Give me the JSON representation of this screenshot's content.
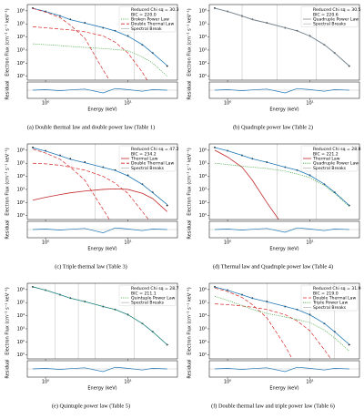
{
  "chart_data": [
    {
      "type": "line",
      "caption": "(a) Double thermal law and double power law (Table 1)",
      "xlabel": "Energy (keV)",
      "ylabel": "Electron Flux (cm⁻² s⁻¹ keV⁻¹)",
      "residual_label": "Residual",
      "stats": [
        "Reduced Chi sq = 30.3",
        "BIC = 220.0"
      ],
      "xscale": "log",
      "yscale": "log",
      "x": [
        0.7,
        1,
        1.5,
        2,
        3,
        5,
        7,
        10,
        15,
        20,
        30
      ],
      "xlim": [
        0.6,
        40
      ],
      "ylim": [
        5,
        3000000
      ],
      "xticks": [
        {
          "value": 1,
          "label": "10⁰"
        },
        {
          "value": 10,
          "label": "10¹"
        }
      ],
      "yticks": [
        {
          "value": 10,
          "label": "10¹"
        },
        {
          "value": 100,
          "label": "10²"
        },
        {
          "value": 1000,
          "label": "10³"
        },
        {
          "value": 10000,
          "label": "10⁴"
        },
        {
          "value": 100000,
          "label": "10⁵"
        },
        {
          "value": 1000000,
          "label": "10⁶"
        }
      ],
      "series": [
        {
          "color": "#000000",
          "style": "points",
          "values": [
            1600000,
            900000,
            400000,
            220000,
            120000,
            50000,
            30000,
            12000,
            2500,
            600,
            60
          ]
        },
        {
          "color": "#1f77b4",
          "style": "solid",
          "values": [
            1550000,
            880000,
            410000,
            210000,
            115000,
            52000,
            29000,
            11500,
            2600,
            580,
            65
          ]
        },
        {
          "name": "Broken Power Law",
          "color": "#2ca02c",
          "style": "dotted",
          "values": [
            3000,
            2600,
            2200,
            1900,
            1600,
            1300,
            1100,
            900,
            300,
            100,
            10
          ]
        },
        {
          "name": "Double Thermal Law",
          "color": "#d62728",
          "style": "dashed",
          "values": [
            1500000,
            800000,
            300000,
            80000,
            8000,
            30,
            1,
            1,
            1,
            1,
            1
          ]
        },
        {
          "color": "#d62728",
          "style": "dashed",
          "values": [
            60000,
            50000,
            40000,
            35000,
            25000,
            12000,
            4000,
            600,
            20,
            1,
            1
          ]
        }
      ],
      "breaks": {
        "name": "Spectral Break",
        "color": "#bbbbbb",
        "x": [
          4,
          12
        ]
      },
      "residual": {
        "color": "#1f77b4",
        "values": [
          0,
          0.1,
          -0.1,
          0.05,
          0.2,
          -0.5,
          0.3,
          0.1,
          -0.2,
          0.1,
          0
        ]
      },
      "residual_ylim": [
        -1.5,
        1.5
      ]
    },
    {
      "type": "line",
      "caption": "(b) Quadruple power law (Table 2)",
      "xlabel": "Energy (keV)",
      "ylabel": "Electron Flux (cm⁻² s⁻¹ keV⁻¹)",
      "residual_label": "Residual",
      "stats": [
        "Reduced Chi sq = 30.5",
        "BIC = 220.6"
      ],
      "xscale": "log",
      "yscale": "log",
      "x": [
        0.7,
        1,
        1.5,
        2,
        3,
        5,
        7,
        10,
        15,
        20,
        30
      ],
      "xlim": [
        0.6,
        40
      ],
      "ylim": [
        5,
        3000000
      ],
      "xticks": [
        {
          "value": 1,
          "label": "10⁰"
        },
        {
          "value": 10,
          "label": "10¹"
        }
      ],
      "yticks": [
        {
          "value": 10,
          "label": "10¹"
        },
        {
          "value": 100,
          "label": "10²"
        },
        {
          "value": 1000,
          "label": "10³"
        },
        {
          "value": 10000,
          "label": "10⁴"
        },
        {
          "value": 100000,
          "label": "10⁵"
        },
        {
          "value": 1000000,
          "label": "10⁶"
        }
      ],
      "series": [
        {
          "color": "#000000",
          "style": "points",
          "values": [
            1600000,
            900000,
            400000,
            220000,
            120000,
            50000,
            30000,
            12000,
            2500,
            600,
            60
          ]
        },
        {
          "color": "#1f77b4",
          "style": "solid",
          "values": [
            1580000,
            890000,
            405000,
            215000,
            118000,
            51000,
            29500,
            11800,
            2550,
            590,
            62
          ]
        },
        {
          "name": "Quadruple Power Law",
          "color": "#888888",
          "style": "solid",
          "values": [
            1580000,
            890000,
            405000,
            215000,
            118000,
            51000,
            29500,
            11800,
            2550,
            590,
            62
          ]
        }
      ],
      "breaks": {
        "name": "Spectral Breaks",
        "color": "#bbbbbb",
        "x": [
          1.5,
          4,
          12
        ]
      },
      "residual": {
        "color": "#1f77b4",
        "values": [
          0,
          0.1,
          -0.1,
          0.05,
          0.2,
          -0.5,
          0.3,
          0.1,
          -0.2,
          0.1,
          0
        ]
      },
      "residual_ylim": [
        -1.5,
        1.5
      ]
    },
    {
      "type": "line",
      "caption": "(c) Triple thermal law (Table 3)",
      "xlabel": "Energy (keV)",
      "ylabel": "Electron Flux (cm⁻² s⁻¹ keV⁻¹)",
      "residual_label": "Residual",
      "stats": [
        "Reduced Chi sq = 47.2",
        "BIC = 234.2"
      ],
      "xscale": "log",
      "yscale": "log",
      "x": [
        0.7,
        1,
        1.5,
        2,
        3,
        5,
        7,
        10,
        15,
        20,
        30
      ],
      "xlim": [
        0.6,
        40
      ],
      "ylim": [
        5,
        3000000
      ],
      "xticks": [
        {
          "value": 1,
          "label": "10⁰"
        },
        {
          "value": 10,
          "label": "10¹"
        }
      ],
      "yticks": [
        {
          "value": 10,
          "label": "10¹"
        },
        {
          "value": 100,
          "label": "10²"
        },
        {
          "value": 1000,
          "label": "10³"
        },
        {
          "value": 10000,
          "label": "10⁴"
        },
        {
          "value": 100000,
          "label": "10⁵"
        },
        {
          "value": 1000000,
          "label": "10⁶"
        }
      ],
      "series": [
        {
          "color": "#000000",
          "style": "points",
          "values": [
            1600000,
            900000,
            400000,
            220000,
            120000,
            50000,
            30000,
            12000,
            2500,
            600,
            60
          ]
        },
        {
          "color": "#1f77b4",
          "style": "solid",
          "values": [
            1500000,
            850000,
            380000,
            200000,
            110000,
            48000,
            28000,
            11000,
            2400,
            560,
            70
          ]
        },
        {
          "name": "Thermal Law",
          "color": "#c0282a",
          "style": "solid",
          "values": [
            150,
            250,
            400,
            550,
            750,
            1000,
            1100,
            1000,
            500,
            200,
            20
          ]
        },
        {
          "name": "Double Thermal Law",
          "color": "#d62728",
          "style": "dashed",
          "values": [
            1200000,
            600000,
            200000,
            50000,
            5000,
            30,
            1,
            1,
            1,
            1,
            1
          ]
        },
        {
          "color": "#d62728",
          "style": "dashed",
          "values": [
            100000,
            90000,
            70000,
            50000,
            30000,
            10000,
            3000,
            500,
            20,
            2,
            1
          ]
        }
      ],
      "breaks": {
        "name": "Spectral Breaks",
        "color": "#bbbbbb",
        "x": [
          4
        ]
      },
      "residual": {
        "color": "#1f77b4",
        "values": [
          0,
          0.1,
          -0.1,
          0.05,
          0.2,
          -0.6,
          0.3,
          0.1,
          -0.2,
          0.1,
          0
        ]
      },
      "residual_ylim": [
        -1.5,
        1.5
      ]
    },
    {
      "type": "line",
      "caption": "(d) Thermal law and Quadruple power law (Table 4)",
      "xlabel": "Energy (keV)",
      "ylabel": "Electron Flux (cm⁻² s⁻¹ keV⁻¹)",
      "residual_label": "Residual",
      "stats": [
        "Reduced Chi sq = 28.8",
        "BIC = 221.2"
      ],
      "xscale": "log",
      "yscale": "log",
      "x": [
        0.7,
        1,
        1.5,
        2,
        3,
        5,
        7,
        10,
        15,
        20,
        30
      ],
      "xlim": [
        0.6,
        40
      ],
      "ylim": [
        5,
        3000000
      ],
      "xticks": [
        {
          "value": 1,
          "label": "10⁰"
        },
        {
          "value": 10,
          "label": "10¹"
        }
      ],
      "yticks": [
        {
          "value": 10,
          "label": "10¹"
        },
        {
          "value": 100,
          "label": "10²"
        },
        {
          "value": 1000,
          "label": "10³"
        },
        {
          "value": 10000,
          "label": "10⁴"
        },
        {
          "value": 100000,
          "label": "10⁵"
        },
        {
          "value": 1000000,
          "label": "10⁶"
        }
      ],
      "series": [
        {
          "color": "#000000",
          "style": "points",
          "values": [
            1600000,
            900000,
            400000,
            220000,
            120000,
            50000,
            30000,
            12000,
            2500,
            600,
            60
          ]
        },
        {
          "color": "#1f77b4",
          "style": "solid",
          "values": [
            1590000,
            895000,
            402000,
            218000,
            119000,
            50500,
            29800,
            11900,
            2520,
            595,
            61
          ]
        },
        {
          "name": "Thermal Law",
          "color": "#c0282a",
          "style": "solid",
          "values": [
            1000000,
            300000,
            50000,
            5000,
            100,
            1,
            1,
            1,
            1,
            1,
            1
          ]
        },
        {
          "name": "Quadruple Power Law",
          "color": "#2ca02c",
          "style": "dotted",
          "values": [
            100000,
            80000,
            60000,
            50000,
            40000,
            25000,
            15000,
            8000,
            2000,
            500,
            50
          ]
        }
      ],
      "breaks": {
        "name": "Spectral Breaks",
        "color": "#bbbbbb",
        "x": [
          4,
          12
        ]
      },
      "residual": {
        "color": "#1f77b4",
        "values": [
          0,
          0.1,
          -0.1,
          0.05,
          0.2,
          -0.5,
          0.3,
          0.1,
          -0.2,
          0.1,
          0
        ]
      },
      "residual_ylim": [
        -1.5,
        1.5
      ]
    },
    {
      "type": "line",
      "caption": "(e) Quintuple power law (Table 5)",
      "xlabel": "Energy (keV)",
      "ylabel": "Electron Flux (cm⁻² s⁻¹ keV⁻¹)",
      "residual_label": "Residual",
      "stats": [
        "Reduced Chi sq = 28.7",
        "BIC = 211.1"
      ],
      "xscale": "log",
      "yscale": "log",
      "x": [
        0.7,
        1,
        1.5,
        2,
        3,
        5,
        7,
        10,
        15,
        20,
        30
      ],
      "xlim": [
        0.6,
        40
      ],
      "ylim": [
        5,
        3000000
      ],
      "xticks": [
        {
          "value": 1,
          "label": "10⁰"
        },
        {
          "value": 10,
          "label": "10¹"
        }
      ],
      "yticks": [
        {
          "value": 10,
          "label": "10¹"
        },
        {
          "value": 100,
          "label": "10²"
        },
        {
          "value": 1000,
          "label": "10³"
        },
        {
          "value": 10000,
          "label": "10⁴"
        },
        {
          "value": 100000,
          "label": "10⁵"
        },
        {
          "value": 1000000,
          "label": "10⁶"
        }
      ],
      "series": [
        {
          "color": "#000000",
          "style": "points",
          "values": [
            1600000,
            900000,
            400000,
            220000,
            120000,
            50000,
            30000,
            12000,
            2500,
            600,
            60
          ]
        },
        {
          "color": "#1f77b4",
          "style": "solid",
          "values": [
            1595000,
            898000,
            401000,
            219000,
            119500,
            50200,
            29900,
            11950,
            2510,
            598,
            60
          ]
        },
        {
          "name": "Quintuple Power Law",
          "color": "#2ca02c",
          "style": "dotted",
          "values": [
            1595000,
            898000,
            401000,
            219000,
            119500,
            50200,
            29900,
            11950,
            2510,
            598,
            60
          ]
        }
      ],
      "breaks": {
        "name": "Spectral Breaks",
        "color": "#bbbbbb",
        "x": [
          1.3,
          2.5,
          4,
          12
        ]
      },
      "residual": {
        "color": "#1f77b4",
        "values": [
          0,
          0.1,
          -0.1,
          0.05,
          0.2,
          -0.5,
          0.3,
          0.1,
          -0.2,
          0.1,
          0
        ]
      },
      "residual_ylim": [
        -1.5,
        1.5
      ]
    },
    {
      "type": "line",
      "caption": "(f) Double thermal law and triple power law (Table 6)",
      "xlabel": "Energy (keV)",
      "ylabel": "Electron Flux (cm⁻² s⁻¹ keV⁻¹)",
      "residual_label": "Residual",
      "stats": [
        "Reduced Chi sq = 31.9",
        "BIC = 219.0"
      ],
      "xscale": "log",
      "yscale": "log",
      "x": [
        0.7,
        1,
        1.5,
        2,
        3,
        5,
        7,
        10,
        15,
        20,
        30
      ],
      "xlim": [
        0.6,
        40
      ],
      "ylim": [
        5,
        3000000
      ],
      "xticks": [
        {
          "value": 1,
          "label": "10⁰"
        },
        {
          "value": 10,
          "label": "10¹"
        }
      ],
      "yticks": [
        {
          "value": 10,
          "label": "10¹"
        },
        {
          "value": 100,
          "label": "10²"
        },
        {
          "value": 1000,
          "label": "10³"
        },
        {
          "value": 10000,
          "label": "10⁴"
        },
        {
          "value": 100000,
          "label": "10⁵"
        },
        {
          "value": 1000000,
          "label": "10⁶"
        }
      ],
      "series": [
        {
          "color": "#000000",
          "style": "points",
          "values": [
            1600000,
            900000,
            400000,
            220000,
            120000,
            50000,
            30000,
            12000,
            2500,
            600,
            60
          ]
        },
        {
          "color": "#1f77b4",
          "style": "solid",
          "values": [
            1560000,
            885000,
            395000,
            212000,
            116000,
            51500,
            29200,
            11700,
            2580,
            585,
            64
          ]
        },
        {
          "name": "Double Thermal Law",
          "color": "#d62728",
          "style": "dashed",
          "values": [
            1300000,
            700000,
            250000,
            70000,
            7000,
            50,
            1,
            1,
            1,
            1,
            1
          ]
        },
        {
          "color": "#d62728",
          "style": "dashed",
          "values": [
            80000,
            70000,
            55000,
            45000,
            30000,
            12000,
            4000,
            700,
            25,
            2,
            1
          ]
        },
        {
          "name": "Triple Power Law",
          "color": "#2ca02c",
          "style": "dotted",
          "values": [
            300000,
            150000,
            60000,
            30000,
            15000,
            8000,
            5000,
            3000,
            800,
            200,
            20
          ]
        }
      ],
      "breaks": {
        "name": "Spectral Breaks",
        "color": "#bbbbbb",
        "x": [
          3,
          10,
          20
        ]
      },
      "residual": {
        "color": "#1f77b4",
        "values": [
          0,
          0.1,
          -0.1,
          0.05,
          0.2,
          -0.5,
          0.3,
          0.1,
          -0.2,
          0.1,
          0
        ]
      },
      "residual_ylim": [
        -1.5,
        1.5
      ]
    }
  ]
}
